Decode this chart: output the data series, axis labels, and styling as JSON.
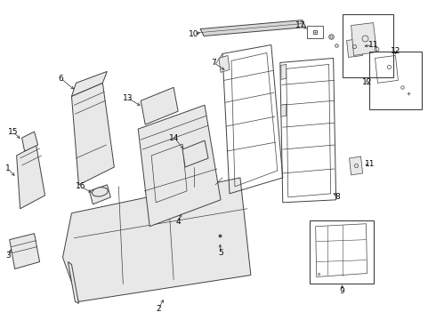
{
  "bg_color": "#ffffff",
  "line_color": "#404040",
  "fig_width": 4.9,
  "fig_height": 3.6,
  "dpi": 100,
  "gray_fill": "#d8d8d8",
  "light_gray": "#e8e8e8"
}
